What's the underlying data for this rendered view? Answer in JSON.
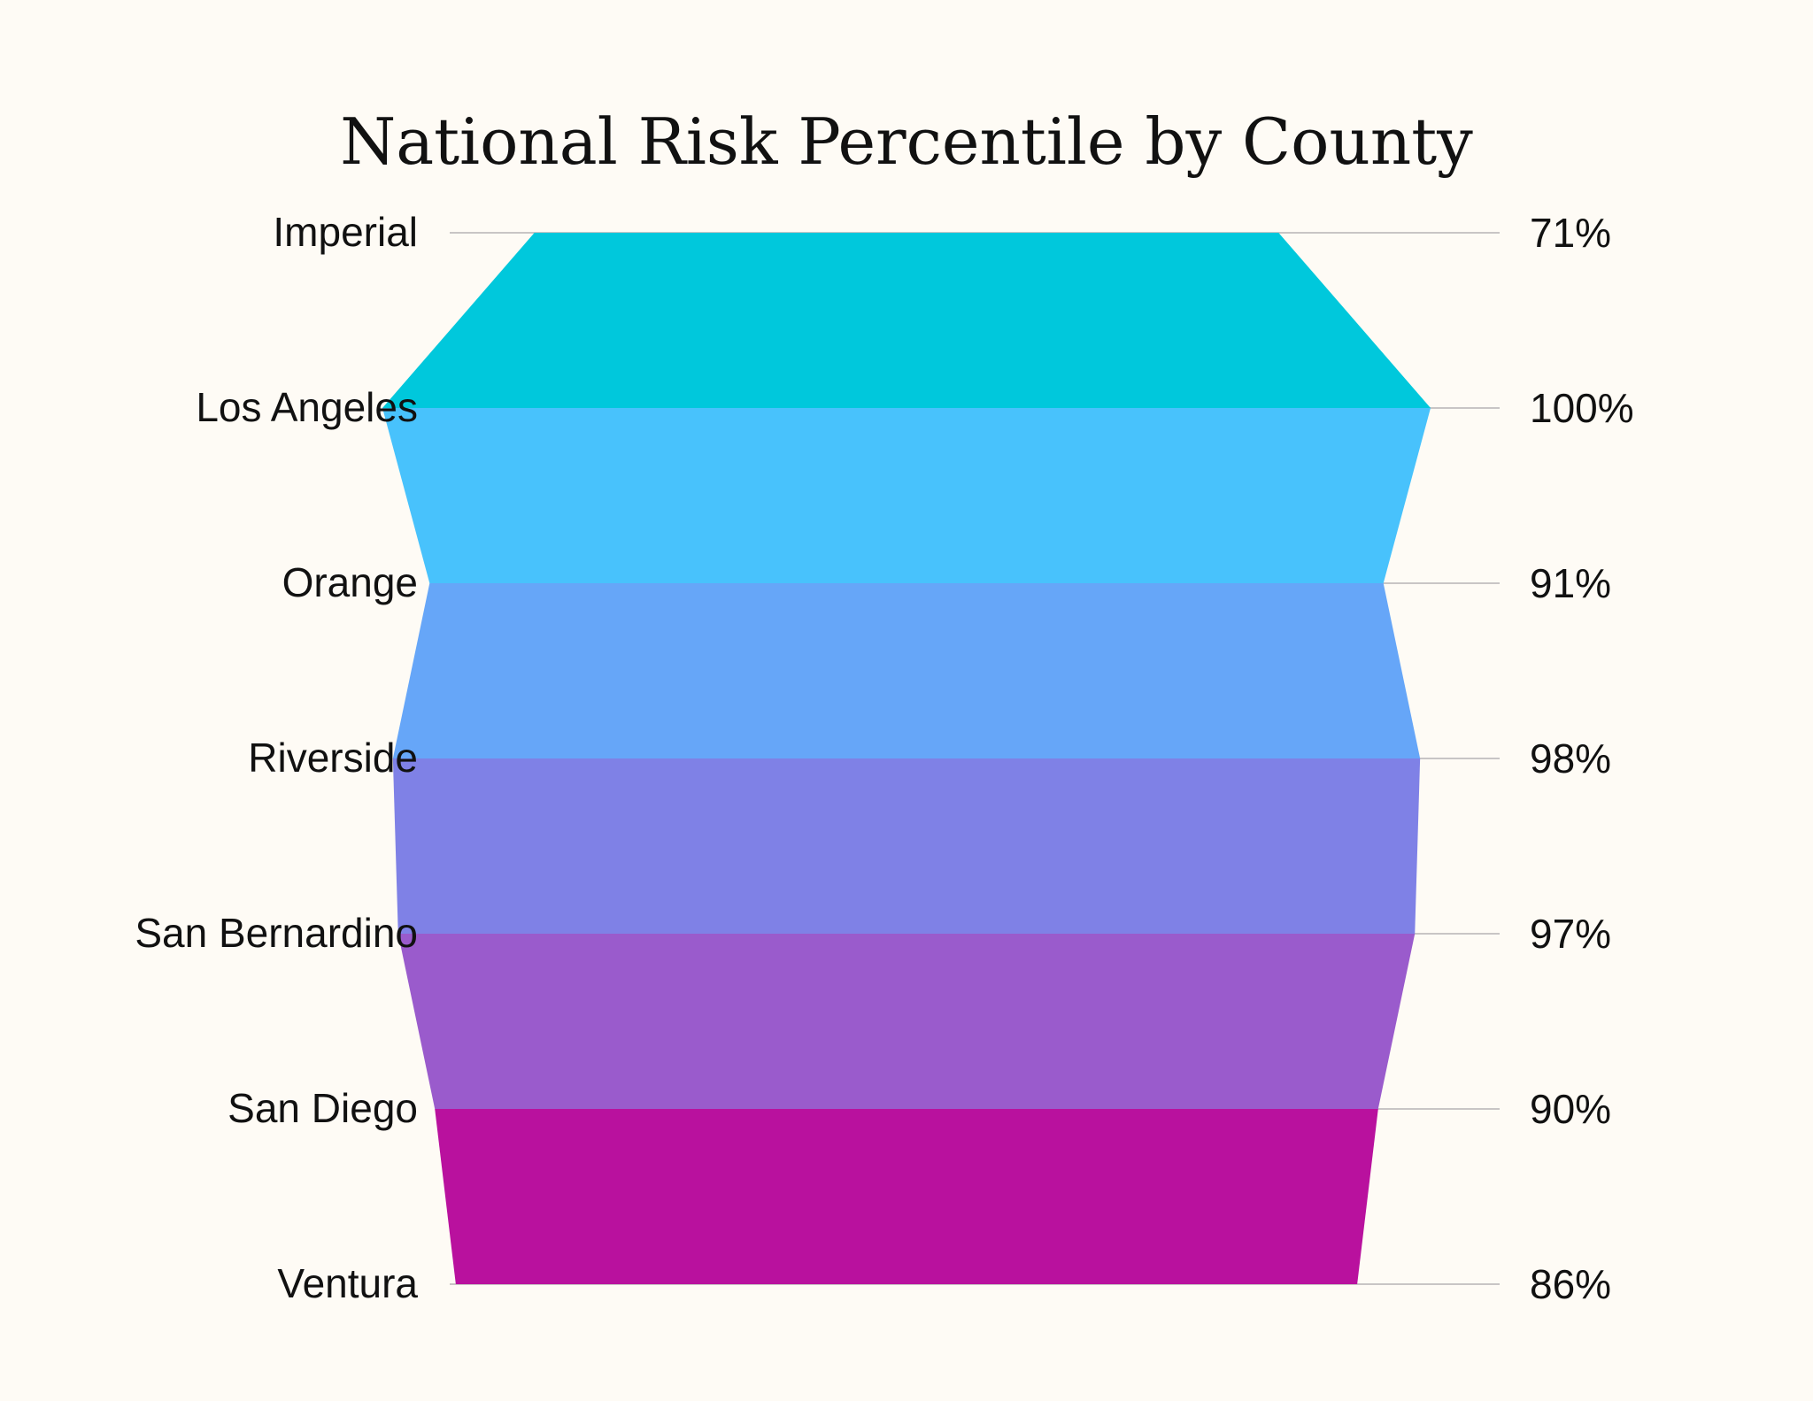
{
  "chart_data": {
    "type": "funnel",
    "title": "National Risk Percentile by County",
    "categories": [
      "Imperial",
      "Los Angeles",
      "Orange",
      "Riverside",
      "San Bernardino",
      "San Diego",
      "Ventura"
    ],
    "values": [
      71,
      100,
      91,
      98,
      97,
      90,
      86
    ],
    "value_labels": [
      "71%",
      "100%",
      "91%",
      "98%",
      "97%",
      "90%",
      "86%"
    ],
    "value_unit": "%",
    "xlim": [
      0,
      100
    ],
    "segment_colors": [
      "#00c8dc",
      "#48c2fc",
      "#66a6f8",
      "#7f81e6",
      "#9a5bcc",
      "#b9119e"
    ],
    "label_color": "#111111",
    "guide_color": "#c8c5c5",
    "background": "#fefbf5",
    "grid": false,
    "legend": "none"
  }
}
